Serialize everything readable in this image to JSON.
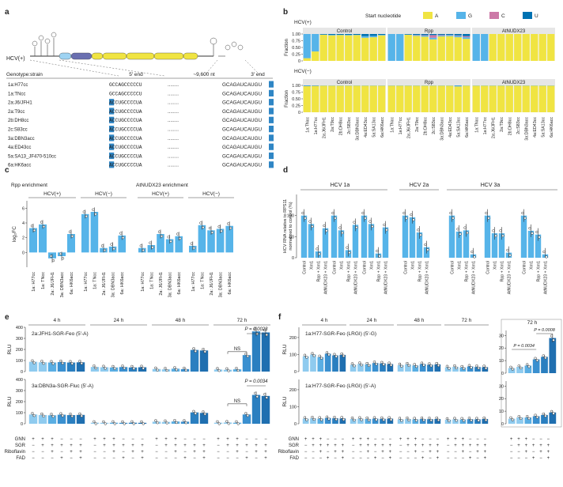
{
  "colors": {
    "A": "#f0e442",
    "G": "#56b4e9",
    "C": "#cc79a7",
    "U": "#0072b2",
    "bar": "#56b4e9",
    "dark": "#1f77b4",
    "mid": "#3a90d0"
  },
  "panels": {
    "a": "a",
    "b": "b",
    "c": "c",
    "d": "d",
    "e": "e",
    "f": "f"
  },
  "a": {
    "hcv": "HCV(+)",
    "genotype": "Genotype:strain",
    "five": "5′ end",
    "dots": "~9,600 nt",
    "three": "3′ end",
    "rows": [
      {
        "s": "1a:H77cc",
        "f": "GCCAGCCCCCU",
        "l": "GCAGAUCAUGU",
        "hl": ""
      },
      {
        "s": "1a:TNcc",
        "f": "GCCAGCCCCCU",
        "l": "GCAGAUCAUGU",
        "hl": ""
      },
      {
        "s": "2a:J6/JFH1",
        "f": "ACCUGCCCCUA",
        "l": "GCAGAUCAUGU",
        "hl": "A"
      },
      {
        "s": "2a:T9cc",
        "f": "ACCUGCCCCUA",
        "l": "GCAGAUCAUGU",
        "hl": "A"
      },
      {
        "s": "2b:DH8cc",
        "f": "ACCUGCCCCUA",
        "l": "GCAGAUCAUGU",
        "hl": "A"
      },
      {
        "s": "2c:S83cc",
        "f": "ACCUGCCCCUA",
        "l": "GCAGAUCAUGU",
        "hl": "A"
      },
      {
        "s": "3a:DBN3acc",
        "f": "ACCUGCCCCUA",
        "l": "GCAGAUCAUGU",
        "hl": "A"
      },
      {
        "s": "4a:ED43cc",
        "f": "ACCUGCCCCUA",
        "l": "GCAGAUCAUGU",
        "hl": "A"
      },
      {
        "s": "5a:SA13_JF470-510cc",
        "f": "ACCUGCCCCUA",
        "l": "GCAGAUCAUGU",
        "hl": "A"
      },
      {
        "s": "6a:HK6acc",
        "f": "ACCUGCCCCUA",
        "l": "GCAGAUCAUGU",
        "hl": "A"
      }
    ]
  },
  "b": {
    "legend_title": "Start nucleotide",
    "legend": [
      "A",
      "G",
      "C",
      "U"
    ],
    "hcvp": "HCV(+)",
    "hcvm": "HCV(−)",
    "groups": [
      "Control",
      "Rpp",
      "AtNUDX23"
    ],
    "ylabel": "Fraction",
    "yticks": [
      "0",
      "0.25",
      "0.50",
      "0.75",
      "1.00"
    ],
    "strains": [
      "1a:TNcc",
      "1a:H77cc",
      "2a:J6/JFH1",
      "2a:T9cc",
      "2b:DH8cc",
      "2c:S83cc",
      "3a:DBN3acc",
      "4a:ED43cc",
      "5a:SA13cc",
      "6a:HK6acc"
    ],
    "plus": [
      [
        [
          0.1,
          0.9,
          0,
          0
        ],
        [
          0.35,
          0.65,
          0,
          0
        ],
        [
          0.97,
          0.01,
          0,
          0.02
        ],
        [
          0.95,
          0.02,
          0,
          0.03
        ],
        [
          0.96,
          0.01,
          0,
          0.03
        ],
        [
          0.95,
          0.02,
          0,
          0.03
        ],
        [
          0.96,
          0.01,
          0,
          0.03
        ],
        [
          0.86,
          0.06,
          0,
          0.08
        ],
        [
          0.88,
          0.05,
          0,
          0.07
        ],
        [
          0.95,
          0.02,
          0,
          0.03
        ]
      ],
      [
        [
          0,
          1,
          0,
          0
        ],
        [
          0,
          1,
          0,
          0
        ],
        [
          0.97,
          0.01,
          0,
          0.02
        ],
        [
          0.93,
          0.03,
          0.01,
          0.03
        ],
        [
          0.9,
          0.04,
          0.02,
          0.04
        ],
        [
          0.8,
          0.06,
          0.1,
          0.04
        ],
        [
          0.91,
          0.04,
          0.02,
          0.03
        ],
        [
          0.92,
          0.04,
          0.01,
          0.03
        ],
        [
          0.88,
          0.05,
          0.02,
          0.05
        ],
        [
          0.82,
          0.06,
          0.04,
          0.08
        ]
      ],
      [
        [
          0,
          1,
          0,
          0
        ],
        [
          0,
          1,
          0,
          0
        ],
        [
          1,
          0,
          0,
          0
        ],
        [
          1,
          0,
          0,
          0
        ],
        [
          1,
          0,
          0,
          0
        ],
        [
          1,
          0,
          0,
          0
        ],
        [
          1,
          0,
          0,
          0
        ],
        [
          1,
          0,
          0,
          0
        ],
        [
          1,
          0,
          0,
          0
        ],
        [
          1,
          0,
          0,
          0
        ]
      ]
    ],
    "minus": [
      [
        [
          0.97,
          0.02,
          0,
          0.01
        ],
        [
          0.98,
          0.01,
          0,
          0.01
        ],
        [
          0.99,
          0.01,
          0,
          0
        ],
        [
          0.99,
          0.01,
          0,
          0
        ],
        [
          0.99,
          0.01,
          0,
          0
        ],
        [
          0.99,
          0.01,
          0,
          0
        ],
        [
          0.99,
          0.01,
          0,
          0
        ],
        [
          0.99,
          0.01,
          0,
          0
        ],
        [
          0.99,
          0.01,
          0,
          0
        ],
        [
          0.99,
          0.01,
          0,
          0
        ]
      ],
      [
        [
          0.99,
          0.01,
          0,
          0
        ],
        [
          0.99,
          0.01,
          0,
          0
        ],
        [
          0.99,
          0.01,
          0,
          0
        ],
        [
          0.99,
          0.01,
          0,
          0
        ],
        [
          0.99,
          0.01,
          0,
          0
        ],
        [
          0.99,
          0.01,
          0,
          0
        ],
        [
          0.99,
          0.01,
          0,
          0
        ],
        [
          0.99,
          0.01,
          0,
          0
        ],
        [
          0.96,
          0.03,
          0,
          0.01
        ],
        [
          0.99,
          0.01,
          0,
          0
        ]
      ],
      [
        [
          0.99,
          0.01,
          0,
          0
        ],
        [
          0.99,
          0.01,
          0,
          0
        ],
        [
          0.99,
          0.01,
          0,
          0
        ],
        [
          0.99,
          0.01,
          0,
          0
        ],
        [
          0.99,
          0.01,
          0,
          0
        ],
        [
          0.99,
          0.01,
          0,
          0
        ],
        [
          0.99,
          0.01,
          0,
          0
        ],
        [
          0.99,
          0.01,
          0,
          0
        ],
        [
          0.99,
          0.01,
          0,
          0
        ],
        [
          0.99,
          0.01,
          0,
          0
        ]
      ]
    ]
  },
  "c": {
    "t1": "Rpp enrichment",
    "t2": "AtNUDX23 enrichment",
    "hp": "HCV(+)",
    "hm": "HCV(−)",
    "ylabel": "log₂FC",
    "yticks": [
      "0",
      "2",
      "4",
      "6"
    ],
    "cats": [
      "1a: H77cc",
      "1a: TNcc",
      "2a: J6/JFH1",
      "3a: DBN3acc",
      "6a: HK6acc"
    ],
    "groups": [
      [
        3.3,
        3.8,
        -0.8,
        -0.5,
        2.5
      ],
      [
        5.2,
        5.5,
        0.6,
        0.8,
        2.3
      ],
      [
        0.6,
        1.0,
        2.5,
        1.8,
        2.2
      ],
      [
        0.9,
        3.7,
        3.0,
        3.2,
        3.6
      ]
    ]
  },
  "d": {
    "h1": "HCV 1a",
    "h2": "HCV 2a",
    "h3": "HCV 3a",
    "ylabel1": "HCV RNA relative to RPS11",
    "ylabel2": "normalized to control (%)",
    "yticks": [
      "0",
      "50",
      "100"
    ],
    "cats": [
      "Control",
      "Xrn1",
      "Rpp + Xrn1",
      "AtNUDX23 + Xrn1"
    ],
    "sets": [
      [
        100,
        80,
        15,
        70
      ],
      [
        100,
        65,
        18,
        78
      ],
      [
        100,
        80,
        10,
        72
      ],
      [
        100,
        96,
        60,
        25
      ],
      [
        100,
        62,
        65,
        8
      ],
      [
        100,
        58,
        58,
        12
      ],
      [
        100,
        64,
        55,
        8
      ]
    ]
  },
  "e": {
    "times": [
      "4 h",
      "24 h",
      "48 h",
      "72 h"
    ],
    "t1": "2a:JFH1-SGR-Feo (5′-A)",
    "t2": "3a:DBN3a-SGR-Fluc (5′-A)",
    "ylabel": "RLU",
    "yticks": [
      "0",
      "100",
      "200",
      "300",
      "400"
    ],
    "p1": "P = 0.0023",
    "p2": "P = 0.0034",
    "ns": "NS",
    "top": [
      [
        95,
        90,
        88,
        92,
        88,
        90
      ],
      [
        45,
        42,
        40,
        44,
        40,
        42
      ],
      [
        25,
        22,
        28,
        24,
        210,
        205
      ],
      [
        20,
        18,
        22,
        160,
        390,
        380
      ]
    ],
    "bot": [
      [
        90,
        85,
        82,
        88,
        84,
        86
      ],
      [
        10,
        9,
        10,
        9,
        10,
        9
      ],
      [
        20,
        18,
        22,
        20,
        110,
        105
      ],
      [
        10,
        12,
        10,
        90,
        280,
        270
      ]
    ]
  },
  "f": {
    "times": [
      "4 h",
      "24 h",
      "48 h",
      "72 h"
    ],
    "t72": "72 h",
    "t1": "1a:H77-SGR-Feo (LRGI) (5′-G)",
    "t2": "1a:H77-SGR-Feo (LRGI) (5′-A)",
    "ylabel": "RLU",
    "yticks": [
      "0",
      "100",
      "200"
    ],
    "zticks": [
      "0",
      "10",
      "20",
      "30"
    ],
    "p1": "P = 0.0034",
    "p2": "P = 0.0008",
    "top": [
      [
        90,
        100,
        85,
        105,
        95,
        98
      ],
      [
        40,
        45,
        42,
        50,
        48,
        44
      ],
      [
        38,
        42,
        36,
        44,
        40,
        42
      ],
      [
        25,
        28,
        24,
        30,
        27,
        26
      ]
    ],
    "bot": [
      [
        30,
        32,
        30,
        34,
        32,
        31
      ],
      [
        28,
        30,
        28,
        30,
        29,
        30
      ],
      [
        26,
        28,
        26,
        28,
        27,
        28
      ],
      [
        24,
        26,
        25,
        27,
        26,
        28
      ]
    ],
    "zoom_top": [
      4,
      5,
      6,
      11,
      13,
      28
    ],
    "zoom_bot": [
      4,
      5,
      5,
      6,
      7,
      9
    ]
  },
  "conditions": {
    "labels": [
      "GNN",
      "SGR",
      "Riboflavin",
      "FAD"
    ],
    "marks": [
      [
        "+",
        "+",
        "+",
        "−",
        "−",
        "−"
      ],
      [
        "−",
        "+",
        "+",
        "+",
        "+",
        "+"
      ],
      [
        "−",
        "−",
        "+",
        "−",
        "+",
        "+"
      ],
      [
        "−",
        "−",
        "−",
        "+",
        "−",
        "+"
      ]
    ]
  }
}
